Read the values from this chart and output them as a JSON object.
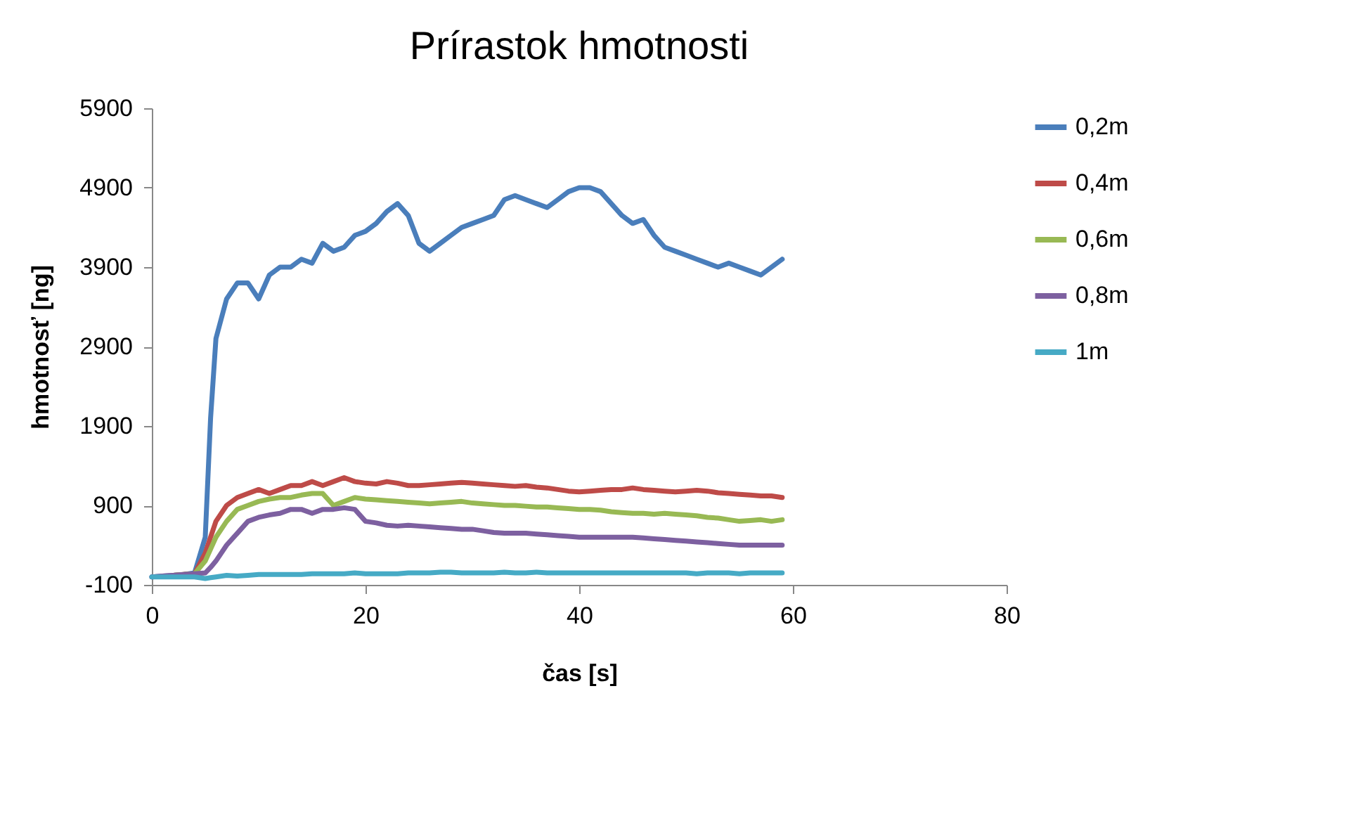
{
  "chart_data": {
    "type": "line",
    "title": "Prírastok hmotnosti",
    "xlabel": "čas [s]",
    "ylabel": "hmotnosť [ng]",
    "xlim": [
      0,
      80
    ],
    "xticks": [
      0,
      20,
      40,
      60,
      80
    ],
    "ylim": [
      -100,
      5900
    ],
    "yticks": [
      -100,
      900,
      1900,
      2900,
      3900,
      4900,
      5900
    ],
    "grid": false,
    "legend": "right",
    "marker": "none",
    "line_style": "solid",
    "x": [
      0,
      1,
      2,
      3,
      4,
      5,
      5.5,
      6,
      7,
      8,
      9,
      10,
      11,
      12,
      13,
      14,
      15,
      16,
      17,
      18,
      19,
      20,
      21,
      22,
      23,
      24,
      25,
      26,
      27,
      28,
      29,
      30,
      31,
      32,
      33,
      34,
      35,
      36,
      37,
      38,
      39,
      40,
      41,
      42,
      43,
      44,
      45,
      46,
      47,
      48,
      49,
      50,
      51,
      52,
      53,
      54,
      55,
      56,
      57,
      58,
      59
    ],
    "series": [
      {
        "name": "0,2m",
        "color": "#4a7ebb",
        "values": [
          0,
          10,
          20,
          30,
          50,
          500,
          2000,
          3000,
          3500,
          3700,
          3700,
          3500,
          3800,
          3900,
          3900,
          4000,
          3950,
          4200,
          4100,
          4150,
          4300,
          4350,
          4450,
          4600,
          4700,
          4550,
          4200,
          4100,
          4200,
          4300,
          4400,
          4450,
          4500,
          4550,
          4750,
          4800,
          4750,
          4700,
          4650,
          4750,
          4850,
          4900,
          4900,
          4850,
          4700,
          4550,
          4450,
          4500,
          4300,
          4150,
          4100,
          4050,
          4000,
          3950,
          3900,
          3950,
          3900,
          3850,
          3800,
          3900,
          4000
        ]
      },
      {
        "name": "0,4m",
        "color": "#be4b48",
        "values": [
          null,
          null,
          20,
          30,
          40,
          300,
          500,
          700,
          900,
          1000,
          1050,
          1100,
          1050,
          1100,
          1150,
          1150,
          1200,
          1150,
          1200,
          1250,
          1200,
          1180,
          1170,
          1200,
          1180,
          1150,
          1150,
          1160,
          1170,
          1180,
          1190,
          1180,
          1170,
          1160,
          1150,
          1140,
          1150,
          1130,
          1120,
          1100,
          1080,
          1070,
          1080,
          1090,
          1100,
          1100,
          1120,
          1100,
          1090,
          1080,
          1070,
          1080,
          1090,
          1080,
          1060,
          1050,
          1040,
          1030,
          1020,
          1020,
          1000
        ]
      },
      {
        "name": "0,6m",
        "color": "#98b954",
        "values": [
          null,
          null,
          20,
          30,
          40,
          200,
          350,
          500,
          700,
          850,
          900,
          950,
          980,
          1000,
          1000,
          1030,
          1050,
          1050,
          900,
          950,
          1000,
          980,
          970,
          960,
          950,
          940,
          930,
          920,
          930,
          940,
          950,
          930,
          920,
          910,
          900,
          900,
          890,
          880,
          880,
          870,
          860,
          850,
          850,
          840,
          820,
          810,
          800,
          800,
          790,
          800,
          790,
          780,
          770,
          750,
          740,
          720,
          700,
          710,
          720,
          700,
          720
        ]
      },
      {
        "name": "0,8m",
        "color": "#7d60a0",
        "values": [
          0,
          10,
          20,
          30,
          40,
          50,
          120,
          200,
          400,
          550,
          700,
          750,
          780,
          800,
          850,
          850,
          800,
          850,
          850,
          870,
          850,
          700,
          680,
          650,
          640,
          650,
          640,
          630,
          620,
          610,
          600,
          600,
          580,
          560,
          550,
          550,
          550,
          540,
          530,
          520,
          510,
          500,
          500,
          500,
          500,
          500,
          500,
          490,
          480,
          470,
          460,
          450,
          440,
          430,
          420,
          410,
          400,
          400,
          400,
          400,
          400
        ]
      },
      {
        "name": "1m",
        "color": "#46aac5",
        "values": [
          0,
          0,
          0,
          0,
          0,
          -20,
          -10,
          0,
          20,
          10,
          20,
          30,
          30,
          30,
          30,
          30,
          40,
          40,
          40,
          40,
          50,
          40,
          40,
          40,
          40,
          50,
          50,
          50,
          60,
          60,
          50,
          50,
          50,
          50,
          60,
          50,
          50,
          60,
          50,
          50,
          50,
          50,
          50,
          50,
          50,
          50,
          50,
          50,
          50,
          50,
          50,
          50,
          40,
          50,
          50,
          50,
          40,
          50,
          50,
          50,
          50
        ]
      }
    ]
  }
}
